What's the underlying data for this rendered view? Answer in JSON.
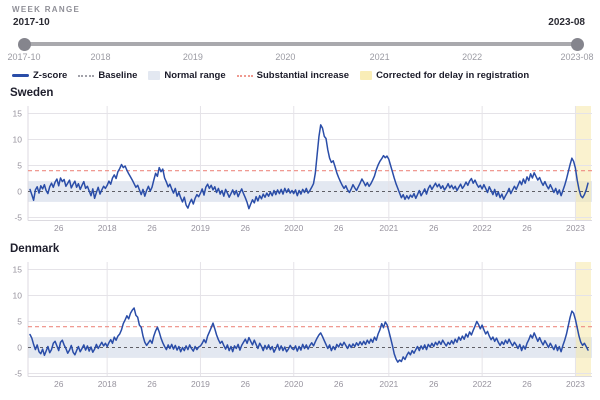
{
  "week_range": {
    "label": "WEEK RANGE",
    "start": "2017-10",
    "end": "2023-08",
    "axis_ticks": [
      {
        "label": "2017-10",
        "i": 0
      },
      {
        "label": "2018",
        "i": 43
      },
      {
        "label": "2019",
        "i": 95
      },
      {
        "label": "2020",
        "i": 147
      },
      {
        "label": "2021",
        "i": 200
      },
      {
        "label": "2022",
        "i": 252
      },
      {
        "label": "2023-08",
        "i": 311
      }
    ]
  },
  "legend": [
    {
      "label": "Z-score",
      "type": "line",
      "color": "#2a4da8"
    },
    {
      "label": "Baseline",
      "type": "dash",
      "color": "#a2a2aa"
    },
    {
      "label": "Normal range",
      "type": "box",
      "color": "#e3e8f1"
    },
    {
      "label": "Substantial increase",
      "type": "dash",
      "color": "#ef9a90"
    },
    {
      "label": "Corrected for delay in registration",
      "type": "box",
      "color": "#f9edb7"
    }
  ],
  "colors": {
    "zscore_line": "#2a4da8",
    "baseline_line": "#5f5f66",
    "substantial_increase_line": "#ee8c82",
    "normal_range_band": "#e3e8f1",
    "corrected_band": "#f6e8a8",
    "grid": "#e5e3e8",
    "axis_text": "#97939e"
  },
  "chart_data": [
    {
      "type": "line",
      "title": "Sweden",
      "x_start": "2017-W10",
      "x_end": "2023-W08",
      "y_ticks": [
        15,
        10,
        5,
        0,
        -5
      ],
      "ylim": [
        -6,
        16
      ],
      "baseline": 0,
      "substantial_increase": 4,
      "normal_range": [
        -2,
        2
      ],
      "corrected_from_index": 306,
      "x_ticks": [
        {
          "label": "26",
          "i": 16
        },
        {
          "label": "2018",
          "i": 43
        },
        {
          "label": "26",
          "i": 68
        },
        {
          "label": "2019",
          "i": 95
        },
        {
          "label": "26",
          "i": 120
        },
        {
          "label": "2020",
          "i": 147
        },
        {
          "label": "26",
          "i": 172
        },
        {
          "label": "2021",
          "i": 200
        },
        {
          "label": "26",
          "i": 225
        },
        {
          "label": "2022",
          "i": 252
        },
        {
          "label": "26",
          "i": 277
        },
        {
          "label": "2023",
          "i": 304
        }
      ],
      "values": [
        0.4,
        -0.6,
        -1.7,
        0.3,
        0.9,
        -0.3,
        1.1,
        0.5,
        1.3,
        0.2,
        -0.4,
        0.9,
        1.6,
        0.8,
        1.8,
        2.4,
        1.1,
        2.6,
        1.9,
        2.3,
        1.0,
        1.6,
        2.2,
        0.7,
        1.4,
        2.0,
        0.8,
        1.5,
        0.4,
        1.2,
        1.9,
        0.6,
        1.0,
        0.1,
        -0.8,
        0.5,
        -1.3,
        -0.2,
        0.8,
        -0.5,
        0.3,
        1.0,
        0.6,
        1.2,
        2.0,
        1.4,
        2.6,
        3.2,
        2.5,
        3.8,
        4.4,
        5.2,
        4.6,
        4.9,
        4.1,
        3.4,
        2.8,
        2.2,
        1.5,
        0.8,
        1.2,
        0.3,
        -0.6,
        0.4,
        -0.9,
        0.2,
        1.0,
        0.1,
        0.8,
        2.2,
        3.5,
        2.9,
        4.6,
        3.8,
        4.3,
        2.6,
        1.8,
        0.9,
        1.4,
        0.5,
        -0.3,
        0.6,
        -0.9,
        -0.2,
        -1.2,
        -2.0,
        -1.1,
        -2.6,
        -3.2,
        -2.2,
        -1.5,
        -2.4,
        -1.3,
        -0.6,
        -1.0,
        -0.3,
        0.5,
        -0.7,
        0.8,
        1.4,
        0.6,
        1.2,
        0.3,
        0.9,
        -0.2,
        0.6,
        -0.5,
        0.2,
        -0.9,
        0.4,
        -0.3,
        -1.1,
        -0.4,
        0.3,
        -0.6,
        0.2,
        -1.0,
        -0.2,
        0.5,
        -0.4,
        -1.2,
        -2.1,
        -3.3,
        -2.4,
        -1.6,
        -2.2,
        -1.0,
        -1.8,
        -0.8,
        -1.4,
        -0.5,
        -1.1,
        -0.3,
        -0.9,
        -0.1,
        -0.8,
        0.2,
        -0.6,
        0.3,
        -0.4,
        0.4,
        -0.5,
        0.6,
        -0.2,
        0.5,
        -0.3,
        0.2,
        -0.4,
        0.3,
        -0.8,
        0.2,
        -0.5,
        0.4,
        -0.2,
        0.6,
        -0.3,
        0.2,
        0.8,
        1.5,
        3.5,
        7.0,
        10.5,
        12.8,
        12.2,
        10.6,
        10.2,
        8.0,
        6.4,
        5.6,
        5.9,
        4.8,
        3.6,
        2.7,
        1.9,
        1.2,
        0.6,
        1.1,
        0.3,
        -0.2,
        0.5,
        1.3,
        0.7,
        0.2,
        0.9,
        1.6,
        2.4,
        1.8,
        1.1,
        1.7,
        1.0,
        1.5,
        2.2,
        3.0,
        4.2,
        5.1,
        5.8,
        6.3,
        6.9,
        6.5,
        6.8,
        6.2,
        5.0,
        3.8,
        2.6,
        1.5,
        0.6,
        -0.3,
        -1.2,
        -0.6,
        -1.5,
        -0.8,
        -1.4,
        -0.7,
        -1.1,
        -0.4,
        -1.3,
        -0.6,
        0.2,
        -0.8,
        -0.2,
        0.5,
        -0.5,
        0.6,
        1.2,
        0.4,
        1.0,
        1.6,
        0.9,
        1.4,
        0.6,
        1.1,
        0.3,
        0.8,
        1.5,
        0.7,
        1.2,
        0.5,
        1.0,
        0.2,
        0.8,
        1.4,
        0.6,
        1.1,
        1.8,
        1.2,
        2.0,
        2.5,
        1.6,
        2.2,
        1.4,
        0.8,
        1.2,
        0.5,
        1.3,
        0.6,
        -0.2,
        0.9,
        0.2,
        -0.6,
        0.4,
        -0.9,
        -0.1,
        -1.2,
        -0.5,
        -1.5,
        -0.8,
        -0.2,
        0.6,
        -0.4,
        0.3,
        1.0,
        0.4,
        1.2,
        2.0,
        1.3,
        2.4,
        1.6,
        2.8,
        2.1,
        3.4,
        2.6,
        3.6,
        2.9,
        2.2,
        2.7,
        1.8,
        1.2,
        1.9,
        1.1,
        0.5,
        1.3,
        0.6,
        -0.2,
        0.6,
        -0.5,
        0.3,
        -0.8,
        0.2,
        1.2,
        2.4,
        3.8,
        5.2,
        6.4,
        5.8,
        4.5,
        2.2,
        0.4,
        -0.8,
        -1.2,
        -0.6,
        0.3,
        1.6
      ]
    },
    {
      "type": "line",
      "title": "Denmark",
      "x_start": "2017-W10",
      "x_end": "2023-W08",
      "y_ticks": [
        15,
        10,
        5,
        0,
        -5
      ],
      "ylim": [
        -6,
        16
      ],
      "baseline": 0,
      "substantial_increase": 4,
      "normal_range": [
        -2,
        2
      ],
      "corrected_from_index": 306,
      "x_ticks": [
        {
          "label": "26",
          "i": 16
        },
        {
          "label": "2018",
          "i": 43
        },
        {
          "label": "26",
          "i": 68
        },
        {
          "label": "2019",
          "i": 95
        },
        {
          "label": "26",
          "i": 120
        },
        {
          "label": "2020",
          "i": 147
        },
        {
          "label": "26",
          "i": 172
        },
        {
          "label": "2021",
          "i": 200
        },
        {
          "label": "26",
          "i": 225
        },
        {
          "label": "2022",
          "i": 252
        },
        {
          "label": "26",
          "i": 277
        },
        {
          "label": "2023",
          "i": 304
        }
      ],
      "values": [
        2.5,
        1.8,
        0.6,
        -0.4,
        0.5,
        -0.8,
        -1.2,
        -0.3,
        -1.5,
        -0.7,
        0.2,
        -1.0,
        -0.4,
        0.8,
        1.2,
        0.3,
        -0.6,
        1.0,
        1.4,
        0.5,
        -0.2,
        -1.1,
        -0.5,
        0.4,
        -0.9,
        -1.4,
        -0.6,
        0.2,
        -0.8,
        -0.2,
        0.5,
        -0.5,
        0.3,
        -0.7,
        0.1,
        -0.9,
        -0.3,
        0.6,
        -0.2,
        0.4,
        1.0,
        0.3,
        0.8,
        0.2,
        0.9,
        1.5,
        0.8,
        2.0,
        1.4,
        2.2,
        2.6,
        3.4,
        4.6,
        5.3,
        6.1,
        5.5,
        6.6,
        7.2,
        7.6,
        6.2,
        5.8,
        4.3,
        3.9,
        2.2,
        1.0,
        0.4,
        0.9,
        1.4,
        0.8,
        2.2,
        3.2,
        3.9,
        3.0,
        1.8,
        0.9,
        0.2,
        -0.4,
        0.5,
        -0.2,
        0.6,
        -0.3,
        0.4,
        -0.5,
        0.2,
        -0.8,
        0.0,
        -0.6,
        0.3,
        -0.4,
        0.5,
        -0.2,
        -0.7,
        0.2,
        -0.4,
        0.1,
        0.3,
        0.8,
        1.5,
        0.9,
        2.2,
        3.0,
        3.8,
        4.7,
        3.6,
        2.4,
        1.5,
        0.8,
        1.2,
        0.4,
        -0.3,
        0.5,
        -0.6,
        0.2,
        -0.8,
        0.3,
        -0.2,
        0.6,
        -0.5,
        0.4,
        1.0,
        1.6,
        0.8,
        1.9,
        1.2,
        0.5,
        1.4,
        0.6,
        -0.2,
        0.8,
        0.2,
        -0.6,
        0.4,
        -0.3,
        0.5,
        -0.4,
        0.2,
        -0.9,
        -0.2,
        0.6,
        -0.5,
        0.3,
        -0.6,
        0.1,
        -0.8,
        -0.3,
        0.4,
        -0.2,
        -0.4,
        0.3,
        -0.7,
        0.2,
        -0.5,
        0.6,
        -0.2,
        0.5,
        -0.3,
        0.4,
        0.9,
        0.3,
        1.1,
        1.8,
        2.4,
        2.8,
        2.1,
        1.3,
        0.6,
        -0.2,
        0.5,
        -0.6,
        0.2,
        -0.4,
        0.6,
        0.1,
        0.8,
        0.3,
        1.0,
        0.4,
        -0.2,
        0.6,
        0.0,
        0.7,
        0.2,
        0.9,
        0.4,
        1.1,
        0.5,
        1.2,
        0.6,
        1.4,
        0.8,
        1.6,
        1.0,
        2.0,
        1.4,
        2.6,
        3.4,
        4.6,
        3.8,
        4.9,
        4.4,
        3.2,
        1.8,
        0.4,
        -1.2,
        -2.2,
        -2.8,
        -2.4,
        -2.7,
        -1.8,
        -2.3,
        -1.5,
        -0.9,
        -1.4,
        -0.6,
        -1.1,
        -0.4,
        0.2,
        -0.6,
        0.3,
        -0.3,
        0.5,
        -0.4,
        0.6,
        0.1,
        0.8,
        0.2,
        1.0,
        0.5,
        1.2,
        0.6,
        1.4,
        0.8,
        0.3,
        1.0,
        0.6,
        1.3,
        0.7,
        1.6,
        1.0,
        2.0,
        1.4,
        2.2,
        1.6,
        2.6,
        2.0,
        3.0,
        2.4,
        3.3,
        4.1,
        5.0,
        4.4,
        3.6,
        4.3,
        3.4,
        2.6,
        3.1,
        2.2,
        1.5,
        2.0,
        1.2,
        1.8,
        1.0,
        0.4,
        1.1,
        0.6,
        1.4,
        0.8,
        1.6,
        0.9,
        0.3,
        1.0,
        0.5,
        -0.2,
        0.6,
        -0.6,
        0.3,
        -0.3,
        0.8,
        1.5,
        2.4,
        1.8,
        2.8,
        2.0,
        1.2,
        1.9,
        1.1,
        0.5,
        1.3,
        0.7,
        0.0,
        0.8,
        0.2,
        -0.4,
        0.5,
        -0.6,
        0.2,
        -0.8,
        0.4,
        1.4,
        2.6,
        4.2,
        5.8,
        7.0,
        6.6,
        5.4,
        3.8,
        2.2,
        1.0,
        0.4,
        0.8,
        0.2,
        -0.5
      ]
    }
  ]
}
